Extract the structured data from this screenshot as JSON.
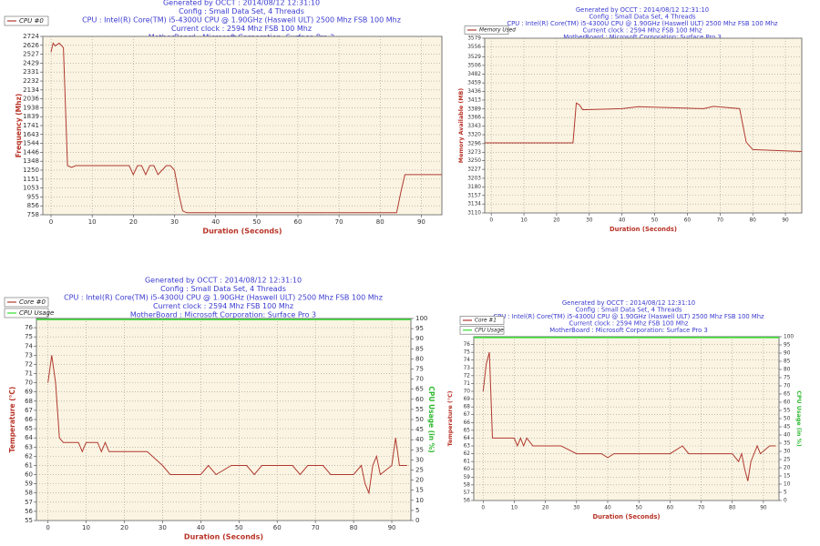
{
  "chart_data": [
    {
      "type": "line",
      "header": [
        "Generated by OCCT : 2014/08/12 12:31:10",
        "Config : Small Data Set, 4 Threads",
        "CPU : Intel(R) Core(TM) i5-4300U CPU @ 1.90GHz (Haswell ULT) 2500 Mhz FSB 100 Mhz",
        "Current clock : 2594 Mhz FSB 100 Mhz",
        "MotherBoard : Microsoft Corporation: Surface Pro 3"
      ],
      "x_label": "Duration (Seconds)",
      "y_label": "Frequency (Mhz)",
      "xlim": [
        -2,
        95
      ],
      "xticks": [
        0,
        10,
        20,
        30,
        40,
        50,
        60,
        70,
        80,
        90
      ],
      "ylim": [
        758,
        2724
      ],
      "yticks": [
        758,
        856,
        955,
        1053,
        1151,
        1250,
        1348,
        1446,
        1544,
        1643,
        1741,
        1839,
        1938,
        2036,
        2134,
        2232,
        2331,
        2429,
        2527,
        2626,
        2724
      ],
      "grid": true,
      "series": [
        {
          "name": "CPU #0",
          "color": "#b03a30",
          "x": [
            0,
            0.5,
            1,
            2,
            3,
            4,
            5,
            6,
            19,
            20,
            21,
            22,
            23,
            24,
            25,
            26,
            27,
            28,
            29,
            30,
            31,
            32,
            33,
            84,
            85,
            86,
            95
          ],
          "values": [
            2550,
            2650,
            2620,
            2650,
            2600,
            1300,
            1280,
            1300,
            1300,
            1200,
            1300,
            1300,
            1200,
            1300,
            1300,
            1200,
            1250,
            1300,
            1300,
            1250,
            1000,
            800,
            780,
            780,
            1000,
            1200,
            1200
          ]
        }
      ]
    },
    {
      "type": "line",
      "header": [
        "Generated by OCCT : 2014/08/12 12:31:10",
        "Config : Small Data Set, 4 Threads",
        "CPU : Intel(R) Core(TM) i5-4300U CPU @ 1.90GHz (Haswell ULT) 2500 Mhz FSB 100 Mhz",
        "Current clock : 2594 Mhz FSB 100 Mhz",
        "MotherBoard : Microsoft Corporation: Surface Pro 3"
      ],
      "x_label": "Duration (Seconds)",
      "y_label": "Memory Available (MB)",
      "xlim": [
        -2,
        95
      ],
      "xticks": [
        0,
        10,
        20,
        30,
        40,
        50,
        60,
        70,
        80,
        90
      ],
      "ylim": [
        3110,
        3579
      ],
      "yticks": [
        3110,
        3134,
        3157,
        3180,
        3203,
        3227,
        3250,
        3273,
        3296,
        3320,
        3343,
        3366,
        3389,
        3413,
        3436,
        3459,
        3482,
        3506,
        3529,
        3556,
        3579
      ],
      "grid": true,
      "series": [
        {
          "name": "Memory Used",
          "color": "#b03a30",
          "x": [
            -2,
            25,
            26,
            27,
            28,
            40,
            45,
            65,
            68,
            76,
            78,
            80,
            95
          ],
          "values": [
            3298,
            3298,
            3405,
            3400,
            3387,
            3390,
            3395,
            3390,
            3396,
            3390,
            3300,
            3280,
            3275
          ]
        }
      ]
    },
    {
      "type": "line",
      "header": [
        "Generated by OCCT : 2014/08/12 12:31:10",
        "Config : Small Data Set, 4 Threads",
        "CPU : Intel(R) Core(TM) i5-4300U CPU @ 1.90GHz (Haswell ULT) 2500 Mhz FSB 100 Mhz",
        "Current clock : 2594 Mhz FSB 100 Mhz",
        "MotherBoard : Microsoft Corporation: Surface Pro 3"
      ],
      "x_label": "Duration (Seconds)",
      "y_label": "Temperature (°C)",
      "y2_label": "CPU Usage (in %)",
      "xlim": [
        -3,
        95
      ],
      "xticks": [
        0,
        10,
        20,
        30,
        40,
        50,
        60,
        70,
        80,
        90
      ],
      "ylim": [
        55,
        77
      ],
      "yticks": [
        55,
        56,
        57,
        58,
        59,
        60,
        61,
        62,
        63,
        64,
        65,
        66,
        67,
        68,
        69,
        70,
        71,
        72,
        73,
        74,
        75,
        76
      ],
      "y2lim": [
        0,
        100
      ],
      "y2ticks": [
        0,
        5,
        10,
        15,
        20,
        25,
        30,
        35,
        40,
        45,
        50,
        55,
        60,
        65,
        70,
        75,
        80,
        85,
        90,
        95,
        100
      ],
      "grid": true,
      "series": [
        {
          "name": "Core #0",
          "color": "#b03a30",
          "x": [
            0,
            1,
            2,
            3,
            4,
            8,
            9,
            10,
            13,
            14,
            15,
            16,
            26,
            30,
            32,
            40,
            42,
            44,
            48,
            52,
            54,
            56,
            60,
            64,
            66,
            68,
            72,
            74,
            80,
            82,
            83,
            84,
            85,
            86,
            87,
            90,
            91,
            92,
            94
          ],
          "values": [
            70,
            73,
            70,
            64,
            63.5,
            63.5,
            62.5,
            63.5,
            63.5,
            62.5,
            63.5,
            62.5,
            62.5,
            61,
            60,
            60,
            61,
            60,
            61,
            61,
            60,
            61,
            61,
            61,
            60,
            61,
            61,
            60,
            60,
            61,
            59,
            58,
            61,
            62,
            60,
            61,
            64,
            61,
            61
          ]
        },
        {
          "name": "CPU Usage",
          "color": "#33dd33",
          "axis": "y2",
          "x": [
            -3,
            95
          ],
          "values": [
            99.5,
            99.5
          ]
        }
      ]
    },
    {
      "type": "line",
      "header": [
        "Generated by OCCT : 2014/08/12 12:31:10",
        "Config : Small Data Set, 4 Threads",
        "CPU : Intel(R) Core(TM) i5-4300U CPU @ 1.90GHz (Haswell ULT) 2500 Mhz FSB 100 Mhz",
        "Current clock : 2594 Mhz FSB 100 Mhz",
        "MotherBoard : Microsoft Corporation: Surface Pro 3"
      ],
      "x_label": "Duration (Seconds)",
      "y_label": "Temperature (°C)",
      "y2_label": "CPU Usage (in %)",
      "xlim": [
        -3,
        95
      ],
      "xticks": [
        0,
        10,
        20,
        30,
        40,
        50,
        60,
        70,
        80,
        90
      ],
      "ylim": [
        56,
        77
      ],
      "yticks": [
        56,
        57,
        58,
        59,
        60,
        61,
        62,
        63,
        64,
        65,
        66,
        67,
        68,
        69,
        70,
        71,
        72,
        73,
        74,
        75,
        76
      ],
      "y2lim": [
        0,
        100
      ],
      "y2ticks": [
        0,
        5,
        10,
        15,
        20,
        25,
        30,
        35,
        40,
        45,
        50,
        55,
        60,
        65,
        70,
        75,
        80,
        85,
        90,
        95,
        100
      ],
      "grid": true,
      "series": [
        {
          "name": "Core #1",
          "color": "#b03a30",
          "x": [
            0,
            1,
            2,
            3,
            4,
            10,
            11,
            12,
            13,
            14,
            16,
            25,
            26,
            30,
            38,
            40,
            42,
            60,
            62,
            64,
            66,
            80,
            82,
            83,
            84,
            85,
            86,
            88,
            89,
            92,
            94
          ],
          "values": [
            70,
            73.5,
            75,
            64,
            64,
            64,
            63,
            64,
            63,
            64,
            63,
            63,
            62.8,
            62,
            62,
            61.5,
            62,
            62,
            62.5,
            63,
            62,
            62,
            61,
            62,
            60,
            58.5,
            61,
            63,
            62,
            63,
            63
          ]
        },
        {
          "name": "CPU Usage",
          "color": "#33dd33",
          "axis": "y2",
          "x": [
            -3,
            95
          ],
          "values": [
            99.5,
            99.5
          ]
        }
      ]
    }
  ]
}
